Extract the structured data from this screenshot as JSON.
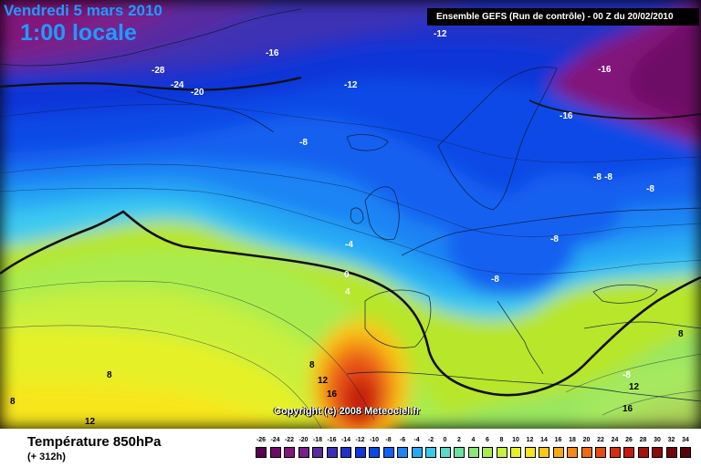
{
  "header": {
    "date": "Vendredi 5 mars 2010",
    "time": "1:00 locale",
    "run": "Ensemble GEFS (Run de contrôle)  -  00 Z du 20/02/2010"
  },
  "copyright": "Copyright (c) 2008 Meteociel.fr",
  "footer": {
    "variable": "Température 850hPa",
    "step": "(+ 312h)"
  },
  "legend": {
    "values": [
      "-26",
      "-24",
      "-22",
      "-20",
      "-18",
      "-16",
      "-14",
      "-12",
      "-10",
      "-8",
      "-6",
      "-4",
      "-2",
      "0",
      "2",
      "4",
      "6",
      "8",
      "10",
      "12",
      "14",
      "16",
      "18",
      "20",
      "22",
      "24",
      "26",
      "28",
      "30",
      "32",
      "34"
    ],
    "colors": [
      "#5a0052",
      "#6e0a66",
      "#82147a",
      "#78208c",
      "#5a2aa0",
      "#3c30b4",
      "#2030c8",
      "#1036d8",
      "#0a48e6",
      "#1660f0",
      "#1e84f4",
      "#28a8f4",
      "#3cc8ec",
      "#5ad8c8",
      "#6ee0a0",
      "#8ae678",
      "#a8ec50",
      "#c8f03c",
      "#e6f028",
      "#f8e61e",
      "#f8c818",
      "#f8a814",
      "#f48a14",
      "#ee6a14",
      "#e44c12",
      "#d62e10",
      "#c41a10",
      "#a8120e",
      "#8c0a0c",
      "#70060a",
      "#560408"
    ]
  },
  "contour_labels": [
    {
      "text": "-28",
      "color": "white"
    },
    {
      "text": "-24",
      "color": "white"
    },
    {
      "text": "-20",
      "color": "white"
    },
    {
      "text": "-16",
      "color": "white"
    },
    {
      "text": "-12",
      "color": "white"
    },
    {
      "text": "-12",
      "color": "white"
    },
    {
      "text": "-16",
      "color": "white"
    },
    {
      "text": "-16",
      "color": "white"
    },
    {
      "text": "-8",
      "color": "white"
    },
    {
      "text": "-8",
      "color": "white"
    },
    {
      "text": "-8",
      "color": "white"
    },
    {
      "text": "-8",
      "color": "white"
    },
    {
      "text": "-8",
      "color": "white"
    },
    {
      "text": "-8",
      "color": "white"
    },
    {
      "text": "-4",
      "color": "white"
    },
    {
      "text": "0",
      "color": "white"
    },
    {
      "text": "4",
      "color": "white"
    },
    {
      "text": "8",
      "color": "black"
    },
    {
      "text": "8",
      "color": "black"
    },
    {
      "text": "8",
      "color": "black"
    },
    {
      "text": "8",
      "color": "black"
    },
    {
      "text": "12",
      "color": "black"
    },
    {
      "text": "12",
      "color": "black"
    },
    {
      "text": "12",
      "color": "black"
    },
    {
      "text": "16",
      "color": "black"
    },
    {
      "text": "16",
      "color": "black"
    },
    {
      "text": "-8",
      "color": "white"
    }
  ]
}
